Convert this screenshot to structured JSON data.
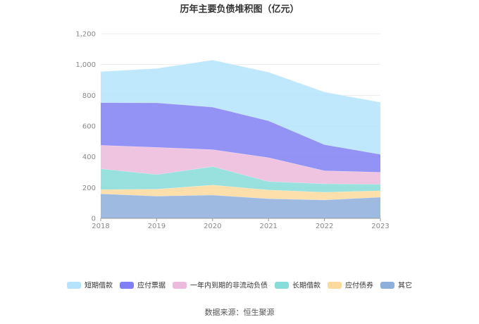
{
  "chart_data": {
    "type": "area",
    "stacked": true,
    "title": "历年主要负债堆积图（亿元）",
    "x": [
      "2018",
      "2019",
      "2020",
      "2021",
      "2022",
      "2023"
    ],
    "ylim": [
      0,
      1200
    ],
    "yticks": [
      0,
      200,
      400,
      600,
      800,
      1000,
      1200
    ],
    "ytick_labels": [
      "0",
      "200",
      "400",
      "600",
      "800",
      "1,000",
      "1,200"
    ],
    "grid": true,
    "legend_position": "bottom",
    "series": [
      {
        "name": "其它",
        "color": "#8eaedc",
        "values": [
          160,
          145,
          152,
          128,
          120,
          138
        ]
      },
      {
        "name": "应付债券",
        "color": "#fcd99c",
        "values": [
          28,
          45,
          65,
          57,
          50,
          42
        ]
      },
      {
        "name": "长期借款",
        "color": "#86dcd8",
        "values": [
          135,
          95,
          120,
          55,
          55,
          42
        ]
      },
      {
        "name": "一年内到期的非流动负债",
        "color": "#ecbadc",
        "values": [
          152,
          177,
          110,
          155,
          85,
          78
        ]
      },
      {
        "name": "应付票据",
        "color": "#8080f4",
        "values": [
          278,
          290,
          277,
          240,
          170,
          117
        ]
      },
      {
        "name": "短期借款",
        "color": "#b4e4fb",
        "values": [
          202,
          223,
          306,
          316,
          342,
          338
        ]
      }
    ],
    "legend_order": [
      "短期借款",
      "应付票据",
      "一年内到期的非流动负债",
      "长期借款",
      "应付债券",
      "其它"
    ],
    "source": "数据来源：恒生聚源"
  }
}
